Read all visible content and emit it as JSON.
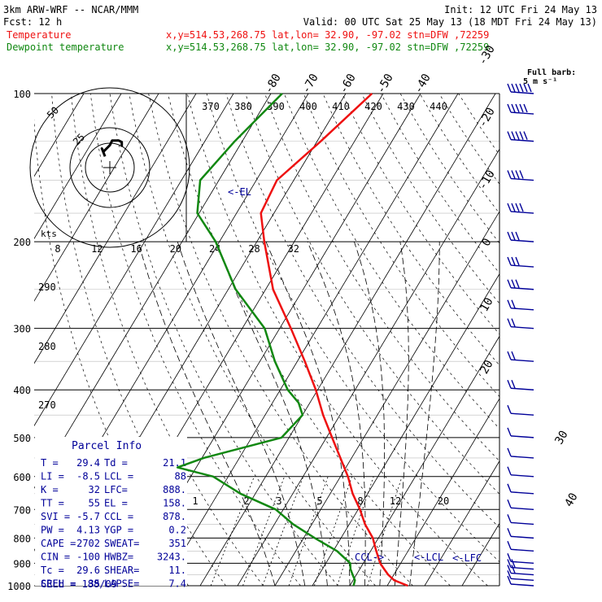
{
  "header": {
    "model_line": "3km ARW-WRF -- NCAR/MMM",
    "fcst_line": "Fcst:   12 h",
    "init_line": "Init: 12 UTC Fri 24 May 13",
    "valid_line": "Valid: 00 UTC Sat 25 May 13 (18 MDT Fri 24 May 13)",
    "temp_label": "Temperature",
    "dew_label": "Dewpoint temperature",
    "point_info": "x,y=514.53,268.75   lat,lon= 32.90, -97.02  stn=DFW ,72259"
  },
  "barb_key": {
    "line1": "Full barb:",
    "line2": "5 m s⁻¹"
  },
  "colors": {
    "temperature": "#ee1111",
    "dewpoint": "#118811",
    "barbs": "#000099",
    "parcel_text": "#000099",
    "grid": "#000000"
  },
  "chart_data": {
    "type": "line",
    "pressure_levels": [
      100,
      200,
      300,
      400,
      500,
      600,
      700,
      800,
      900,
      1000
    ],
    "skewed_temperature_ticks": [
      -80,
      -70,
      -60,
      -50,
      -40,
      -30,
      -20,
      -10,
      0,
      10,
      20,
      30,
      40
    ],
    "dry_adiabat_labels": [
      "370",
      "380",
      "390",
      "400",
      "410",
      "420",
      "430",
      "440",
      "290",
      "280",
      "270"
    ],
    "mixing_ratio_labels": [
      "1",
      "2",
      "3",
      "5",
      "8",
      "12",
      "20"
    ],
    "series": [
      {
        "name": "Temperature",
        "pressure": [
          1000,
          975,
          950,
          925,
          900,
          850,
          800,
          750,
          700,
          650,
          600,
          550,
          500,
          450,
          400,
          350,
          300,
          250,
          200,
          175,
          150,
          125,
          100
        ],
        "value": [
          35.5,
          31.0,
          28.5,
          26.5,
          24.5,
          21.5,
          18.5,
          14.2,
          10.5,
          6.0,
          2.0,
          -3.0,
          -8.5,
          -14.5,
          -20.5,
          -28.0,
          -37.0,
          -48.0,
          -58.0,
          -63.5,
          -64.5,
          -59.0,
          -53.0
        ]
      },
      {
        "name": "Dewpoint temperature",
        "pressure": [
          1000,
          975,
          950,
          925,
          900,
          850,
          800,
          750,
          700,
          650,
          600,
          575,
          550,
          500,
          450,
          425,
          400,
          350,
          300,
          250,
          200,
          175,
          150,
          125,
          100
        ],
        "value": [
          21.0,
          20.5,
          19.0,
          17.5,
          16.5,
          11.0,
          3.0,
          -5.0,
          -12.0,
          -24.0,
          -34.0,
          -45.0,
          -39.5,
          -22.0,
          -20.0,
          -23.0,
          -28.0,
          -36.0,
          -44.0,
          -58.0,
          -71.0,
          -80.5,
          -85.0,
          -82.0,
          -77.0
        ]
      }
    ],
    "hodograph": {
      "units_label": "kts",
      "ring_labels": [
        "25",
        "50"
      ],
      "u": [
        -6,
        -10,
        -8,
        0,
        3,
        6,
        11,
        15,
        15
      ],
      "v": [
        7,
        12,
        10,
        14,
        17,
        17,
        17,
        16,
        13
      ]
    },
    "top_axis_labels": [
      "8",
      "12",
      "16",
      "20",
      "24",
      "28",
      "32"
    ],
    "annotations": {
      "el": "<-EL",
      "ccl": "CCL->",
      "lcl": "<-LCL",
      "lfc": "<-LFC"
    }
  },
  "parcel_info": {
    "title": "Parcel Info",
    "rows": [
      [
        "T  =",
        "29.4",
        "Td =",
        "21.1"
      ],
      [
        "LI =",
        "-8.5",
        "LCL =",
        "88"
      ],
      [
        "K  =",
        "32",
        "LFC=",
        "888."
      ],
      [
        "TT =",
        "55",
        "EL =",
        "158."
      ],
      [
        "SVI =",
        "-5.7",
        "CCL =",
        "878."
      ],
      [
        "PW =",
        "4.13",
        "YGP =",
        "0.2"
      ],
      [
        "CAPE =",
        "2702",
        "SWEAT=",
        "351"
      ],
      [
        "CIN =",
        "-100",
        "HWBZ=",
        "3243."
      ],
      [
        "Tc =",
        "29.6",
        "SHEAR=",
        "11."
      ],
      [
        "SREH =",
        "35",
        "LAPSE=",
        "7.4"
      ]
    ],
    "cell": "CELL = 188/09"
  },
  "wind_barbs": {
    "pressure": [
      100,
      110,
      125,
      150,
      175,
      200,
      225,
      250,
      275,
      300,
      350,
      400,
      450,
      500,
      550,
      600,
      650,
      700,
      750,
      800,
      850,
      900,
      925,
      950,
      975,
      1000
    ],
    "speed_ms": [
      30,
      28,
      25,
      22,
      20,
      17,
      15,
      15,
      14,
      13,
      12,
      11,
      9,
      8,
      7,
      7,
      6,
      6,
      6,
      7,
      8,
      9,
      10,
      10,
      9,
      8
    ]
  }
}
